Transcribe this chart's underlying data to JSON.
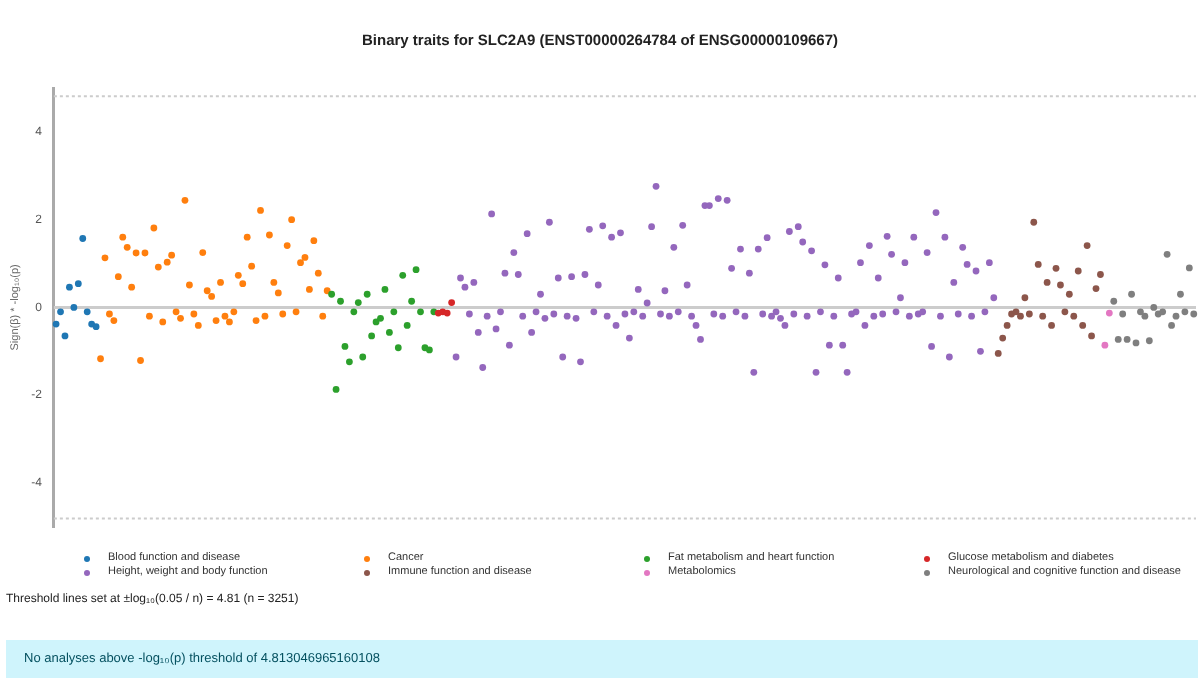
{
  "chart_data": {
    "type": "scatter",
    "title": "Binary traits for SLC2A9 (ENST00000264784 of ENSG00000109667)",
    "ylabel": "Sign(β) * -log₁₀(p)",
    "categories": [
      null,
      null,
      null,
      null,
      null,
      null,
      null,
      null,
      null,
      null,
      null,
      null,
      null,
      null,
      null,
      null,
      null,
      null,
      null,
      null,
      null,
      null,
      null,
      null,
      null,
      null,
      null,
      null,
      null,
      null,
      null,
      null,
      null,
      null,
      null,
      null,
      null,
      null,
      null,
      null,
      null,
      null,
      null,
      null,
      null,
      null,
      null,
      null,
      null,
      null,
      null,
      null,
      null,
      null,
      null,
      null,
      null,
      null,
      null,
      null,
      null,
      null,
      null,
      null,
      null,
      null,
      null,
      null,
      null,
      null,
      null,
      null,
      null,
      null,
      null,
      null,
      null,
      null,
      null,
      null,
      null,
      null,
      null,
      null,
      null,
      null,
      null,
      null,
      null,
      null,
      null,
      null,
      null,
      null,
      null,
      null,
      null,
      null,
      null,
      null,
      null,
      null,
      null,
      null,
      null,
      null,
      null,
      null,
      null,
      null,
      null,
      null,
      null,
      null,
      null,
      null,
      null,
      null,
      null,
      null,
      null,
      null,
      null,
      null,
      null,
      null,
      null,
      null,
      null,
      null,
      null,
      null,
      null,
      null,
      null,
      null,
      null,
      null,
      null,
      null,
      null,
      null,
      null,
      null,
      null,
      null,
      null,
      null,
      null,
      null,
      null,
      null,
      null,
      null,
      null,
      null,
      null,
      null,
      null,
      null,
      null,
      null,
      null,
      null,
      null,
      null,
      null,
      null,
      null,
      null,
      null,
      null,
      null,
      null,
      null,
      null,
      null,
      null,
      null,
      null,
      null,
      null,
      null,
      null,
      null,
      null,
      null,
      null,
      null,
      null,
      null,
      null,
      null,
      null,
      null,
      null,
      null,
      null,
      null,
      null,
      null,
      null,
      null,
      null,
      null,
      null,
      null,
      null,
      null,
      null,
      null,
      null,
      null,
      null,
      null,
      null,
      null,
      null,
      null,
      null,
      null,
      null,
      null,
      null,
      null,
      null,
      null,
      null,
      null,
      null,
      null,
      null,
      null,
      null,
      null,
      null,
      null,
      null,
      null,
      null,
      null,
      null,
      null,
      null,
      null,
      null,
      null,
      null,
      null,
      null,
      null,
      null,
      null,
      null,
      null,
      null,
      null
    ],
    "ylim": [
      -5,
      5
    ],
    "yticks": [
      -4,
      -2,
      0,
      2,
      4
    ],
    "tick_labels": "y",
    "grid": false,
    "legend": "bottom",
    "marker": "circle",
    "ref_lines": [
      {
        "axis": "y",
        "value": 4.81,
        "color": "#cccccc",
        "line_style": "dotted"
      },
      {
        "axis": "y",
        "value": -4.81,
        "color": "#cccccc",
        "line_style": "dotted"
      },
      {
        "axis": "y",
        "value": 0,
        "color": "#cccccc",
        "line_style": "solid"
      }
    ],
    "annotations": [
      "Threshold lines set at ±log₁₀(0.05 / n) = 4.81 (n = 3251)",
      "No analyses above -log₁₀(p) threshold of 4.813046965160108"
    ],
    "series": [
      {
        "name": "Blood function and disease",
        "color": "#1f77b4",
        "values": [
          -0.38,
          -0.1,
          -0.65,
          0.46,
          0,
          0.54,
          1.57,
          -0.1,
          -0.38,
          -0.44,
          null,
          null,
          null,
          null,
          null,
          null,
          null,
          null,
          null,
          null,
          null,
          null,
          null,
          null,
          null,
          null,
          null,
          null,
          null,
          null,
          null,
          null,
          null,
          null,
          null,
          null,
          null,
          null,
          null,
          null,
          null,
          null,
          null,
          null,
          null,
          null,
          null,
          null,
          null,
          null,
          null,
          null,
          null,
          null,
          null,
          null,
          null,
          null,
          null,
          null,
          null,
          null,
          null,
          null,
          null,
          null,
          null,
          null,
          null,
          null,
          null,
          null,
          null,
          null,
          null,
          null,
          null,
          null,
          null,
          null,
          null,
          null,
          null,
          null,
          null,
          null,
          null,
          null,
          null,
          null,
          null,
          null,
          null,
          null,
          null,
          null,
          null,
          null,
          null,
          null,
          null,
          null,
          null,
          null,
          null,
          null,
          null,
          null,
          null,
          null,
          null,
          null,
          null,
          null,
          null,
          null,
          null,
          null,
          null,
          null,
          null,
          null,
          null,
          null,
          null,
          null,
          null,
          null,
          null,
          null,
          null,
          null,
          null,
          null,
          null,
          null,
          null,
          null,
          null,
          null,
          null,
          null,
          null,
          null,
          null,
          null,
          null,
          null,
          null,
          null,
          null,
          null,
          null,
          null,
          null,
          null,
          null,
          null,
          null,
          null,
          null,
          null,
          null,
          null,
          null,
          null,
          null,
          null,
          null,
          null,
          null,
          null,
          null,
          null,
          null,
          null,
          null,
          null,
          null,
          null,
          null,
          null,
          null,
          null,
          null,
          null,
          null,
          null,
          null,
          null,
          null,
          null,
          null,
          null,
          null,
          null,
          null,
          null,
          null,
          null,
          null,
          null,
          null,
          null,
          null,
          null,
          null,
          null,
          null,
          null,
          null,
          null,
          null,
          null,
          null,
          null,
          null,
          null,
          null,
          null,
          null,
          null,
          null,
          null,
          null,
          null,
          null,
          null,
          null,
          null,
          null,
          null,
          null,
          null,
          null,
          null,
          null,
          null,
          null,
          null,
          null,
          null,
          null,
          null,
          null,
          null,
          null,
          null,
          null,
          null,
          null,
          null,
          null,
          null,
          null,
          null,
          null
        ]
      },
      {
        "name": "Cancer",
        "color": "#ff7f0e",
        "values": [
          null,
          null,
          null,
          null,
          null,
          null,
          null,
          null,
          null,
          null,
          -1.17,
          1.13,
          -0.15,
          -0.3,
          0.7,
          1.6,
          1.37,
          0.46,
          1.24,
          -1.21,
          1.24,
          -0.2,
          1.81,
          0.92,
          -0.33,
          1.03,
          1.19,
          -0.1,
          -0.25,
          2.44,
          0.51,
          -0.15,
          -0.41,
          1.25,
          0.38,
          0.25,
          -0.3,
          0.57,
          -0.2,
          -0.33,
          -0.1,
          0.73,
          0.54,
          1.6,
          0.94,
          -0.3,
          2.21,
          -0.2,
          1.65,
          0.57,
          0.33,
          -0.15,
          1.41,
          2.0,
          -0.1,
          1.02,
          1.14,
          0.41,
          1.52,
          0.78,
          -0.2,
          0.38,
          null,
          null,
          null,
          null,
          null,
          null,
          null,
          null,
          null,
          null,
          null,
          null,
          null,
          null,
          null,
          null,
          null,
          null,
          null,
          null,
          null,
          null,
          null,
          null,
          null,
          null,
          null,
          null,
          null,
          null,
          null,
          null,
          null,
          null,
          null,
          null,
          null,
          null,
          null,
          null,
          null,
          null,
          null,
          null,
          null,
          null,
          null,
          null,
          null,
          null,
          null,
          null,
          null,
          null,
          null,
          null,
          null,
          null,
          null,
          null,
          null,
          null,
          null,
          null,
          null,
          null,
          null,
          null,
          null,
          null,
          null,
          null,
          null,
          null,
          null,
          null,
          null,
          null,
          null,
          null,
          null,
          null,
          null,
          null,
          null,
          null,
          null,
          null,
          null,
          null,
          null,
          null,
          null,
          null,
          null,
          null,
          null,
          null,
          null,
          null,
          null,
          null,
          null,
          null,
          null,
          null,
          null,
          null,
          null,
          null,
          null,
          null,
          null,
          null,
          null,
          null,
          null,
          null,
          null,
          null,
          null,
          null,
          null,
          null,
          null,
          null,
          null,
          null,
          null,
          null,
          null,
          null,
          null,
          null,
          null,
          null,
          null,
          null,
          null,
          null,
          null,
          null,
          null,
          null,
          null,
          null,
          null,
          null,
          null,
          null,
          null,
          null,
          null,
          null,
          null,
          null,
          null,
          null,
          null,
          null,
          null,
          null,
          null,
          null,
          null,
          null,
          null,
          null,
          null,
          null,
          null,
          null,
          null,
          null,
          null,
          null,
          null,
          null,
          null,
          null,
          null,
          null,
          null,
          null,
          null,
          null,
          null,
          null,
          null,
          null,
          null,
          null,
          null,
          null,
          null
        ]
      },
      {
        "name": "Fat metabolism and heart function",
        "color": "#2ca02c",
        "values": [
          null,
          null,
          null,
          null,
          null,
          null,
          null,
          null,
          null,
          null,
          null,
          null,
          null,
          null,
          null,
          null,
          null,
          null,
          null,
          null,
          null,
          null,
          null,
          null,
          null,
          null,
          null,
          null,
          null,
          null,
          null,
          null,
          null,
          null,
          null,
          null,
          null,
          null,
          null,
          null,
          null,
          null,
          null,
          null,
          null,
          null,
          null,
          null,
          null,
          null,
          null,
          null,
          null,
          null,
          null,
          null,
          null,
          null,
          null,
          null,
          null,
          null,
          0.3,
          -1.87,
          0.14,
          -0.89,
          -1.24,
          -0.1,
          0.11,
          -1.13,
          0.3,
          -0.65,
          -0.33,
          -0.25,
          0.41,
          -0.57,
          -0.1,
          -0.92,
          0.73,
          -0.41,
          0.14,
          0.86,
          -0.1,
          -0.92,
          -0.97,
          -0.1,
          null,
          null,
          null,
          null,
          null,
          null,
          null,
          null,
          null,
          null,
          null,
          null,
          null,
          null,
          null,
          null,
          null,
          null,
          null,
          null,
          null,
          null,
          null,
          null,
          null,
          null,
          null,
          null,
          null,
          null,
          null,
          null,
          null,
          null,
          null,
          null,
          null,
          null,
          null,
          null,
          null,
          null,
          null,
          null,
          null,
          null,
          null,
          null,
          null,
          null,
          null,
          null,
          null,
          null,
          null,
          null,
          null,
          null,
          null,
          null,
          null,
          null,
          null,
          null,
          null,
          null,
          null,
          null,
          null,
          null,
          null,
          null,
          null,
          null,
          null,
          null,
          null,
          null,
          null,
          null,
          null,
          null,
          null,
          null,
          null,
          null,
          null,
          null,
          null,
          null,
          null,
          null,
          null,
          null,
          null,
          null,
          null,
          null,
          null,
          null,
          null,
          null,
          null,
          null,
          null,
          null,
          null,
          null,
          null,
          null,
          null,
          null,
          null,
          null,
          null,
          null,
          null,
          null,
          null,
          null,
          null,
          null,
          null,
          null,
          null,
          null,
          null,
          null,
          null,
          null,
          null,
          null,
          null,
          null,
          null,
          null,
          null,
          null,
          null,
          null,
          null,
          null,
          null,
          null,
          null,
          null,
          null,
          null,
          null,
          null,
          null,
          null,
          null,
          null,
          null,
          null,
          null,
          null,
          null,
          null,
          null,
          null,
          null,
          null,
          null,
          null,
          null,
          null,
          null,
          null,
          null
        ]
      },
      {
        "name": "Glucose metabolism and diabetes",
        "color": "#d62728",
        "values": [
          null,
          null,
          null,
          null,
          null,
          null,
          null,
          null,
          null,
          null,
          null,
          null,
          null,
          null,
          null,
          null,
          null,
          null,
          null,
          null,
          null,
          null,
          null,
          null,
          null,
          null,
          null,
          null,
          null,
          null,
          null,
          null,
          null,
          null,
          null,
          null,
          null,
          null,
          null,
          null,
          null,
          null,
          null,
          null,
          null,
          null,
          null,
          null,
          null,
          null,
          null,
          null,
          null,
          null,
          null,
          null,
          null,
          null,
          null,
          null,
          null,
          null,
          null,
          null,
          null,
          null,
          null,
          null,
          null,
          null,
          null,
          null,
          null,
          null,
          null,
          null,
          null,
          null,
          null,
          null,
          null,
          null,
          null,
          null,
          null,
          null,
          -0.13,
          -0.1,
          -0.13,
          0.11,
          null,
          null,
          null,
          null,
          null,
          null,
          null,
          null,
          null,
          null,
          null,
          null,
          null,
          null,
          null,
          null,
          null,
          null,
          null,
          null,
          null,
          null,
          null,
          null,
          null,
          null,
          null,
          null,
          null,
          null,
          null,
          null,
          null,
          null,
          null,
          null,
          null,
          null,
          null,
          null,
          null,
          null,
          null,
          null,
          null,
          null,
          null,
          null,
          null,
          null,
          null,
          null,
          null,
          null,
          null,
          null,
          null,
          null,
          null,
          null,
          null,
          null,
          null,
          null,
          null,
          null,
          null,
          null,
          null,
          null,
          null,
          null,
          null,
          null,
          null,
          null,
          null,
          null,
          null,
          null,
          null,
          null,
          null,
          null,
          null,
          null,
          null,
          null,
          null,
          null,
          null,
          null,
          null,
          null,
          null,
          null,
          null,
          null,
          null,
          null,
          null,
          null,
          null,
          null,
          null,
          null,
          null,
          null,
          null,
          null,
          null,
          null,
          null,
          null,
          null,
          null,
          null,
          null,
          null,
          null,
          null,
          null,
          null,
          null,
          null,
          null,
          null,
          null,
          null,
          null,
          null,
          null,
          null,
          null,
          null,
          null,
          null,
          null,
          null,
          null,
          null,
          null,
          null,
          null,
          null,
          null,
          null,
          null,
          null,
          null,
          null,
          null,
          null,
          null,
          null,
          null,
          null,
          null,
          null,
          null,
          null,
          null,
          null,
          null,
          null,
          null,
          null
        ]
      },
      {
        "name": "Height, weight and body function",
        "color": "#9467bd",
        "values": [
          null,
          null,
          null,
          null,
          null,
          null,
          null,
          null,
          null,
          null,
          null,
          null,
          null,
          null,
          null,
          null,
          null,
          null,
          null,
          null,
          null,
          null,
          null,
          null,
          null,
          null,
          null,
          null,
          null,
          null,
          null,
          null,
          null,
          null,
          null,
          null,
          null,
          null,
          null,
          null,
          null,
          null,
          null,
          null,
          null,
          null,
          null,
          null,
          null,
          null,
          null,
          null,
          null,
          null,
          null,
          null,
          null,
          null,
          null,
          null,
          null,
          null,
          null,
          null,
          null,
          null,
          null,
          null,
          null,
          null,
          null,
          null,
          null,
          null,
          null,
          null,
          null,
          null,
          null,
          null,
          null,
          null,
          null,
          null,
          null,
          null,
          null,
          null,
          null,
          null,
          -1.13,
          0.67,
          0.46,
          -0.15,
          0.57,
          -0.57,
          -1.37,
          -0.2,
          2.13,
          -0.49,
          -0.1,
          0.78,
          -0.86,
          1.25,
          0.75,
          -0.2,
          1.68,
          -0.57,
          -0.1,
          0.3,
          -0.25,
          1.94,
          -0.15,
          0.67,
          -1.13,
          -0.2,
          0.7,
          -0.25,
          -1.24,
          0.75,
          1.78,
          -0.1,
          0.51,
          1.86,
          -0.2,
          1.6,
          -0.41,
          1.7,
          -0.15,
          -0.7,
          -0.1,
          0.41,
          -0.2,
          0.1,
          1.84,
          2.76,
          -0.15,
          0.38,
          -0.2,
          1.37,
          -0.1,
          1.87,
          0.51,
          -0.2,
          -0.41,
          -0.73,
          2.32,
          2.32,
          -0.15,
          2.48,
          -0.2,
          2.44,
          0.89,
          -0.1,
          1.33,
          -0.2,
          0.78,
          -1.48,
          1.33,
          -0.15,
          1.59,
          -0.2,
          -0.1,
          -0.25,
          -0.41,
          1.73,
          -0.15,
          1.84,
          1.49,
          -0.2,
          1.29,
          -1.48,
          -0.1,
          0.97,
          -0.86,
          -0.2,
          0.67,
          -0.86,
          -1.48,
          -0.15,
          -0.1,
          1.02,
          -0.41,
          1.41,
          -0.2,
          0.67,
          -0.15,
          1.62,
          1.21,
          -0.1,
          0.22,
          1.02,
          -0.2,
          1.6,
          -0.15,
          -0.1,
          1.25,
          -0.89,
          2.16,
          -0.2,
          1.6,
          -1.13,
          0.57,
          -0.15,
          1.37,
          0.98,
          -0.2,
          0.83,
          -1.0,
          -0.1,
          1.02,
          0.22,
          null,
          null,
          null,
          null,
          null,
          null,
          null,
          null,
          null,
          null,
          null,
          null,
          null,
          null,
          null,
          null,
          null,
          null,
          null,
          null,
          null,
          null,
          null,
          null,
          null,
          null,
          null,
          null,
          null,
          null,
          null,
          null,
          null,
          null,
          null,
          null,
          null,
          null,
          null,
          null,
          null,
          null,
          null,
          null,
          null
        ]
      },
      {
        "name": "Immune function and disease",
        "color": "#8c564b",
        "values": [
          null,
          null,
          null,
          null,
          null,
          null,
          null,
          null,
          null,
          null,
          null,
          null,
          null,
          null,
          null,
          null,
          null,
          null,
          null,
          null,
          null,
          null,
          null,
          null,
          null,
          null,
          null,
          null,
          null,
          null,
          null,
          null,
          null,
          null,
          null,
          null,
          null,
          null,
          null,
          null,
          null,
          null,
          null,
          null,
          null,
          null,
          null,
          null,
          null,
          null,
          null,
          null,
          null,
          null,
          null,
          null,
          null,
          null,
          null,
          null,
          null,
          null,
          null,
          null,
          null,
          null,
          null,
          null,
          null,
          null,
          null,
          null,
          null,
          null,
          null,
          null,
          null,
          null,
          null,
          null,
          null,
          null,
          null,
          null,
          null,
          null,
          null,
          null,
          null,
          null,
          null,
          null,
          null,
          null,
          null,
          null,
          null,
          null,
          null,
          null,
          null,
          null,
          null,
          null,
          null,
          null,
          null,
          null,
          null,
          null,
          null,
          null,
          null,
          null,
          null,
          null,
          null,
          null,
          null,
          null,
          null,
          null,
          null,
          null,
          null,
          null,
          null,
          null,
          null,
          null,
          null,
          null,
          null,
          null,
          null,
          null,
          null,
          null,
          null,
          null,
          null,
          null,
          null,
          null,
          null,
          null,
          null,
          null,
          null,
          null,
          null,
          null,
          null,
          null,
          null,
          null,
          null,
          null,
          null,
          null,
          null,
          null,
          null,
          null,
          null,
          null,
          null,
          null,
          null,
          null,
          null,
          null,
          null,
          null,
          null,
          null,
          null,
          null,
          null,
          null,
          null,
          null,
          null,
          null,
          null,
          null,
          null,
          null,
          null,
          null,
          null,
          null,
          null,
          null,
          null,
          null,
          null,
          null,
          null,
          null,
          null,
          null,
          null,
          null,
          null,
          null,
          null,
          null,
          null,
          null,
          null,
          null,
          -1.05,
          -0.7,
          -0.41,
          -0.15,
          -0.1,
          -0.2,
          0.22,
          -0.15,
          1.94,
          0.98,
          -0.2,
          0.57,
          -0.41,
          0.89,
          0.51,
          -0.1,
          0.3,
          -0.2,
          0.83,
          -0.41,
          1.41,
          -0.65,
          0.43,
          0.75,
          null,
          null,
          null,
          null,
          null,
          null,
          null,
          null,
          null,
          null,
          null,
          null,
          null,
          null,
          null,
          null,
          null,
          null,
          null,
          null,
          null
        ]
      },
      {
        "name": "Metabolomics",
        "color": "#e377c2",
        "values": [
          null,
          null,
          null,
          null,
          null,
          null,
          null,
          null,
          null,
          null,
          null,
          null,
          null,
          null,
          null,
          null,
          null,
          null,
          null,
          null,
          null,
          null,
          null,
          null,
          null,
          null,
          null,
          null,
          null,
          null,
          null,
          null,
          null,
          null,
          null,
          null,
          null,
          null,
          null,
          null,
          null,
          null,
          null,
          null,
          null,
          null,
          null,
          null,
          null,
          null,
          null,
          null,
          null,
          null,
          null,
          null,
          null,
          null,
          null,
          null,
          null,
          null,
          null,
          null,
          null,
          null,
          null,
          null,
          null,
          null,
          null,
          null,
          null,
          null,
          null,
          null,
          null,
          null,
          null,
          null,
          null,
          null,
          null,
          null,
          null,
          null,
          null,
          null,
          null,
          null,
          null,
          null,
          null,
          null,
          null,
          null,
          null,
          null,
          null,
          null,
          null,
          null,
          null,
          null,
          null,
          null,
          null,
          null,
          null,
          null,
          null,
          null,
          null,
          null,
          null,
          null,
          null,
          null,
          null,
          null,
          null,
          null,
          null,
          null,
          null,
          null,
          null,
          null,
          null,
          null,
          null,
          null,
          null,
          null,
          null,
          null,
          null,
          null,
          null,
          null,
          null,
          null,
          null,
          null,
          null,
          null,
          null,
          null,
          null,
          null,
          null,
          null,
          null,
          null,
          null,
          null,
          null,
          null,
          null,
          null,
          null,
          null,
          null,
          null,
          null,
          null,
          null,
          null,
          null,
          null,
          null,
          null,
          null,
          null,
          null,
          null,
          null,
          null,
          null,
          null,
          null,
          null,
          null,
          null,
          null,
          null,
          null,
          null,
          null,
          null,
          null,
          null,
          null,
          null,
          null,
          null,
          null,
          null,
          null,
          null,
          null,
          null,
          null,
          null,
          null,
          null,
          null,
          null,
          null,
          null,
          null,
          null,
          null,
          null,
          null,
          null,
          null,
          null,
          null,
          null,
          null,
          null,
          null,
          null,
          null,
          null,
          null,
          null,
          null,
          null,
          null,
          null,
          null,
          null,
          null,
          null,
          -0.86,
          -0.13,
          null,
          null,
          null,
          null,
          null,
          null,
          null,
          null,
          null,
          null,
          null,
          null,
          null,
          null,
          null,
          null,
          null,
          null,
          null
        ]
      },
      {
        "name": "Neurological and cognitive function and disease",
        "color": "#7f7f7f",
        "values": [
          null,
          null,
          null,
          null,
          null,
          null,
          null,
          null,
          null,
          null,
          null,
          null,
          null,
          null,
          null,
          null,
          null,
          null,
          null,
          null,
          null,
          null,
          null,
          null,
          null,
          null,
          null,
          null,
          null,
          null,
          null,
          null,
          null,
          null,
          null,
          null,
          null,
          null,
          null,
          null,
          null,
          null,
          null,
          null,
          null,
          null,
          null,
          null,
          null,
          null,
          null,
          null,
          null,
          null,
          null,
          null,
          null,
          null,
          null,
          null,
          null,
          null,
          null,
          null,
          null,
          null,
          null,
          null,
          null,
          null,
          null,
          null,
          null,
          null,
          null,
          null,
          null,
          null,
          null,
          null,
          null,
          null,
          null,
          null,
          null,
          null,
          null,
          null,
          null,
          null,
          null,
          null,
          null,
          null,
          null,
          null,
          null,
          null,
          null,
          null,
          null,
          null,
          null,
          null,
          null,
          null,
          null,
          null,
          null,
          null,
          null,
          null,
          null,
          null,
          null,
          null,
          null,
          null,
          null,
          null,
          null,
          null,
          null,
          null,
          null,
          null,
          null,
          null,
          null,
          null,
          null,
          null,
          null,
          null,
          null,
          null,
          null,
          null,
          null,
          null,
          null,
          null,
          null,
          null,
          null,
          null,
          null,
          null,
          null,
          null,
          null,
          null,
          null,
          null,
          null,
          null,
          null,
          null,
          null,
          null,
          null,
          null,
          null,
          null,
          null,
          null,
          null,
          null,
          null,
          null,
          null,
          null,
          null,
          null,
          null,
          null,
          null,
          null,
          null,
          null,
          null,
          null,
          null,
          null,
          null,
          null,
          null,
          null,
          null,
          null,
          null,
          null,
          null,
          null,
          null,
          null,
          null,
          null,
          null,
          null,
          null,
          null,
          null,
          null,
          null,
          null,
          null,
          null,
          null,
          null,
          null,
          null,
          null,
          null,
          null,
          null,
          null,
          null,
          null,
          null,
          null,
          null,
          null,
          null,
          null,
          null,
          null,
          null,
          null,
          null,
          null,
          null,
          null,
          null,
          null,
          null,
          null,
          null,
          0.14,
          -0.73,
          -0.15,
          -0.73,
          0.3,
          -0.81,
          -0.1,
          -0.2,
          -0.76,
          0,
          -0.15,
          -0.1,
          1.21,
          -0.41,
          -0.2,
          0.3,
          -0.1,
          0.9,
          -0.15
        ]
      }
    ]
  }
}
